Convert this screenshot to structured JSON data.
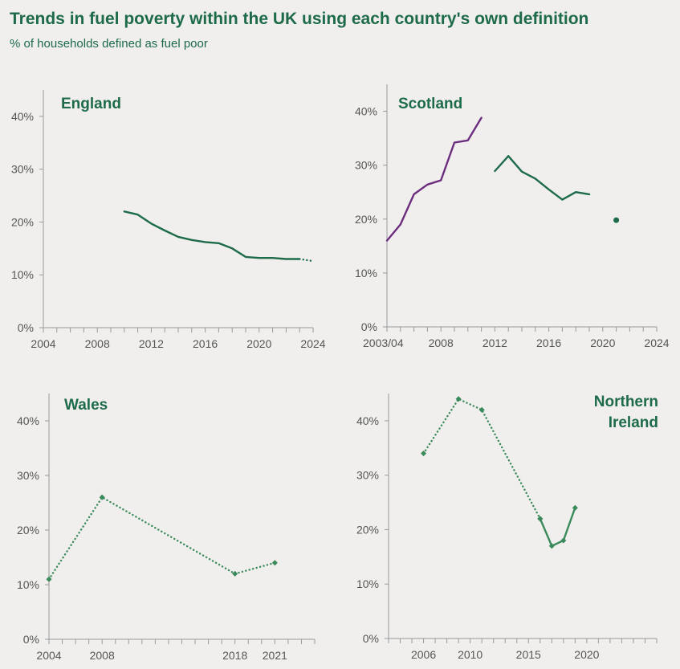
{
  "title": "Trends in fuel poverty within the UK using each country's own definition",
  "subtitle": "% of households defined as fuel poor",
  "colors": {
    "england": "#1e6b4a",
    "scotland_old": "#6b2d7e",
    "scotland_new": "#1e6b4a",
    "wales": "#3a8a5c",
    "ni": "#3a8a5c",
    "axis": "#9a9a9a",
    "text": "#555555"
  },
  "chart_data": [
    {
      "id": "england",
      "type": "line",
      "title": "England",
      "xlim": [
        2004,
        2024
      ],
      "ylim": [
        0,
        45
      ],
      "x_ticks": [
        2004,
        2008,
        2012,
        2016,
        2020,
        2024
      ],
      "y_ticks": [
        0,
        10,
        20,
        30,
        40
      ],
      "y_tick_labels": [
        "0%",
        "10%",
        "20%",
        "30%",
        "40%"
      ],
      "series": [
        {
          "style": "solid",
          "color_key": "england",
          "x": [
            2010,
            2011,
            2012,
            2013,
            2014,
            2015,
            2016,
            2017,
            2018,
            2019,
            2020,
            2021,
            2022,
            2023
          ],
          "y": [
            22.0,
            21.4,
            19.7,
            18.4,
            17.2,
            16.6,
            16.2,
            16.0,
            15.0,
            13.4,
            13.2,
            13.2,
            13.0,
            13.0
          ]
        },
        {
          "style": "dotted",
          "color_key": "england",
          "x": [
            2023,
            2024
          ],
          "y": [
            13.0,
            12.6
          ]
        }
      ]
    },
    {
      "id": "scotland",
      "type": "line",
      "title": "Scotland",
      "xlim": [
        2004,
        2024
      ],
      "ylim": [
        0,
        45
      ],
      "x_ticks": [
        2004,
        2008,
        2012,
        2016,
        2020,
        2024
      ],
      "x_tick_labels": [
        "2003/04",
        "2008",
        "2012",
        "2016",
        "2020",
        "2024"
      ],
      "y_ticks": [
        0,
        10,
        20,
        30,
        40
      ],
      "y_tick_labels": [
        "0%",
        "10%",
        "20%",
        "30%",
        "40%"
      ],
      "series": [
        {
          "style": "solid",
          "color_key": "scotland_old",
          "x": [
            2004,
            2005,
            2006,
            2007,
            2008,
            2009,
            2010,
            2011
          ],
          "y": [
            16.0,
            19.0,
            24.6,
            26.4,
            27.2,
            34.2,
            34.6,
            38.8
          ]
        },
        {
          "style": "solid",
          "color_key": "scotland_new",
          "x": [
            2012,
            2013,
            2014,
            2015,
            2016,
            2017,
            2018,
            2019
          ],
          "y": [
            28.9,
            31.7,
            28.8,
            27.5,
            25.5,
            23.6,
            25.0,
            24.6
          ]
        },
        {
          "style": "point",
          "color_key": "scotland_new",
          "x": [
            2021
          ],
          "y": [
            19.8
          ]
        }
      ]
    },
    {
      "id": "wales",
      "type": "line",
      "title": "Wales",
      "xlim": [
        2004,
        2024
      ],
      "ylim": [
        0,
        45
      ],
      "x_ticks": [
        2004,
        2008,
        2018,
        2021
      ],
      "y_ticks": [
        0,
        10,
        20,
        30,
        40
      ],
      "y_tick_labels": [
        "0%",
        "10%",
        "20%",
        "30%",
        "40%"
      ],
      "series": [
        {
          "style": "dotted",
          "color_key": "wales",
          "x": [
            2004,
            2008,
            2018,
            2021
          ],
          "y": [
            11,
            26,
            12,
            14
          ]
        }
      ]
    },
    {
      "id": "ni",
      "type": "line",
      "title": "Northern Ireland",
      "title_lines": [
        "Northern",
        "Ireland"
      ],
      "xlim": [
        2003,
        2026
      ],
      "ylim": [
        0,
        45
      ],
      "x_ticks": [
        2006,
        2010,
        2015,
        2020
      ],
      "y_ticks": [
        0,
        10,
        20,
        30,
        40
      ],
      "y_tick_labels": [
        "0%",
        "10%",
        "20%",
        "30%",
        "40%"
      ],
      "series": [
        {
          "style": "dotted",
          "color_key": "ni",
          "x": [
            2006,
            2009,
            2011,
            2016
          ],
          "y": [
            34,
            44,
            42,
            22
          ]
        },
        {
          "style": "solid",
          "color_key": "ni",
          "x": [
            2016,
            2017,
            2018,
            2019
          ],
          "y": [
            22,
            17,
            18,
            24
          ]
        }
      ]
    }
  ]
}
